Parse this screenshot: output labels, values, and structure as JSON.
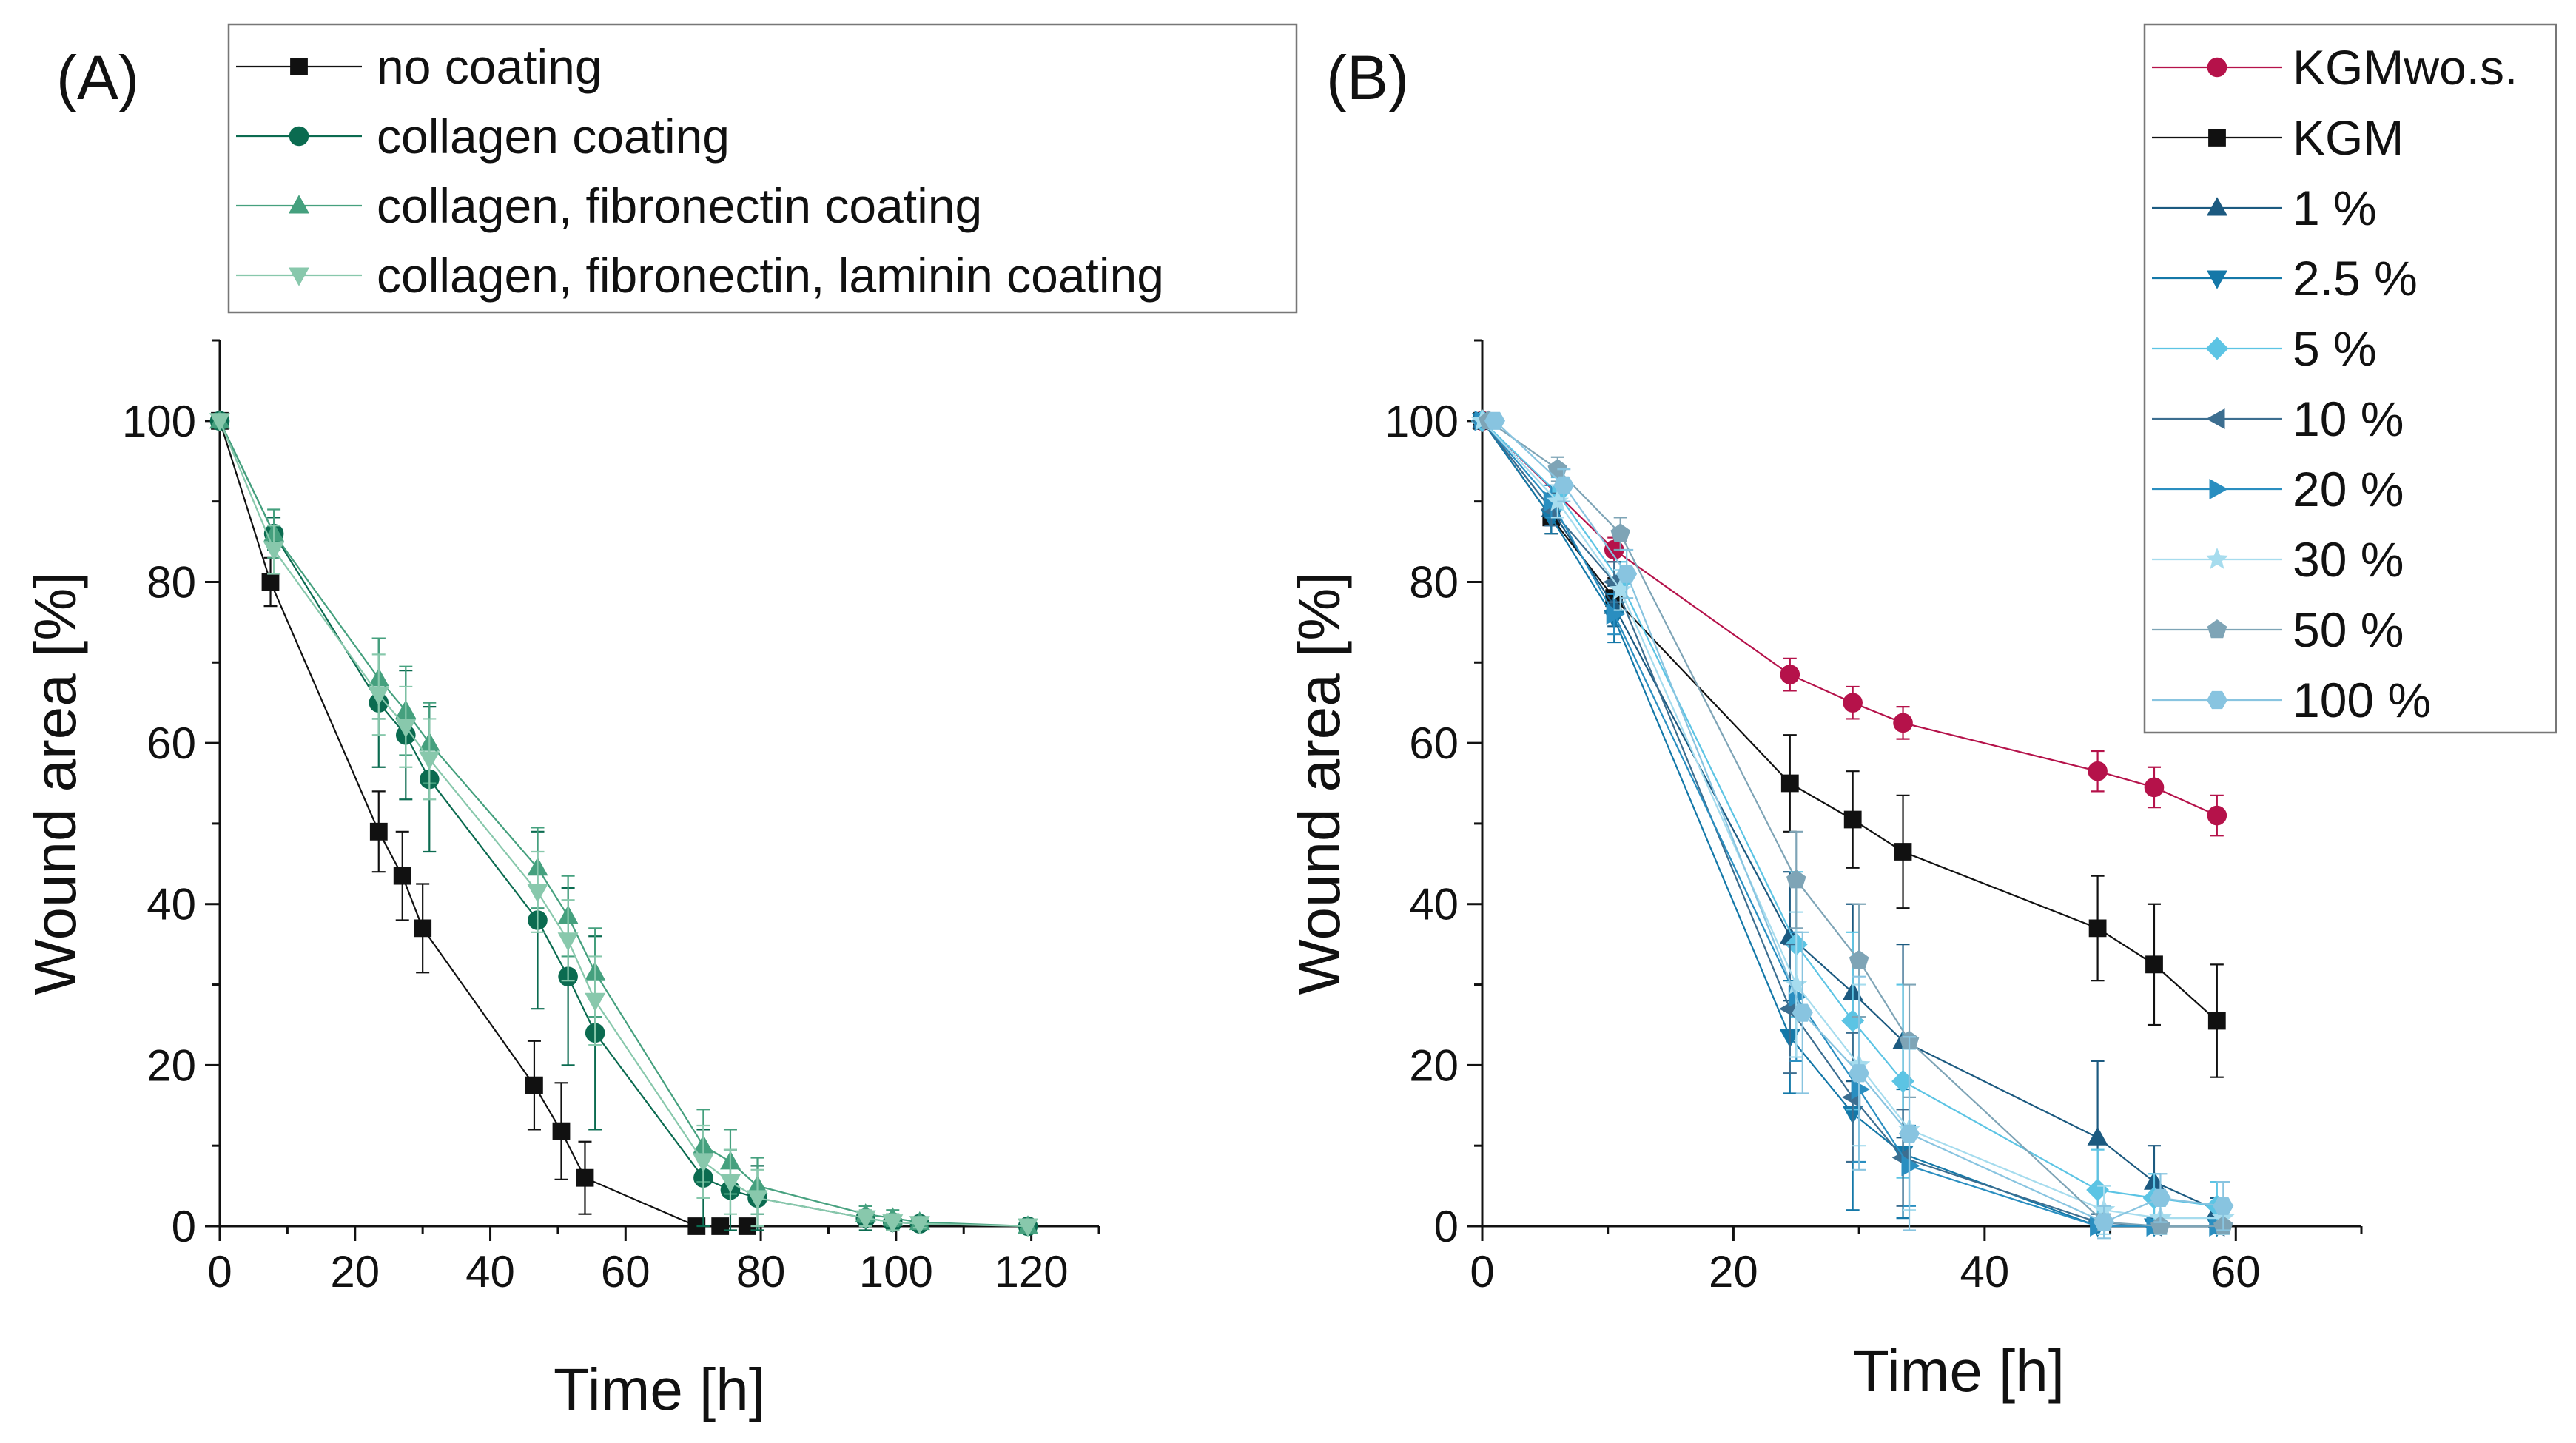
{
  "chart_data": [
    {
      "type": "line",
      "panel_label": "(A)",
      "xlabel": "Time [h]",
      "ylabel": "Wound area [%]",
      "xlim": [
        0,
        130
      ],
      "ylim": [
        0,
        110
      ],
      "xticks": [
        0,
        20,
        40,
        60,
        80,
        100,
        120
      ],
      "yticks": [
        0,
        20,
        40,
        60,
        80,
        100
      ],
      "legend_position": "top",
      "series": [
        {
          "name": "no coating",
          "marker": "square",
          "color": "#111111",
          "x": [
            0,
            7.5,
            23.5,
            27,
            30,
            46.5,
            50.5,
            54,
            70.5,
            74,
            78
          ],
          "y": [
            100,
            80,
            49,
            43.5,
            37,
            17.5,
            11.8,
            6,
            0,
            0,
            0
          ],
          "err": [
            0,
            3,
            5,
            5.5,
            5.5,
            5.5,
            6,
            4.5,
            0,
            0,
            0
          ]
        },
        {
          "name": "collagen coating",
          "marker": "circle",
          "color": "#0b6b50",
          "x": [
            0,
            8,
            23.5,
            27.5,
            31,
            47,
            51.5,
            55.5,
            71.5,
            75.5,
            79.5,
            95.5,
            99.5,
            103.5,
            119.5
          ],
          "y": [
            100,
            86,
            65,
            61,
            55.5,
            38,
            31,
            24,
            6,
            4.5,
            3.5,
            1,
            0.5,
            0.3,
            0
          ],
          "err": [
            0,
            2,
            8,
            8,
            9,
            11,
            11,
            12,
            6,
            5,
            4,
            1.5,
            1,
            0.5,
            0
          ]
        },
        {
          "name": "collagen, fibronectin coating",
          "marker": "triangle-up",
          "color": "#45a07e",
          "x": [
            0,
            8,
            23.5,
            27.5,
            31,
            47,
            51.5,
            55.5,
            71.5,
            75.5,
            79.5,
            95.5,
            99.5,
            103.5,
            119.5
          ],
          "y": [
            100,
            86,
            68,
            64,
            60,
            44.5,
            38.5,
            31.5,
            10,
            8,
            5,
            1.5,
            1,
            0.5,
            0
          ],
          "err": [
            0,
            3,
            5,
            5.5,
            5,
            5,
            5,
            5.5,
            4.5,
            4,
            3.5,
            1,
            1,
            0.5,
            0
          ]
        },
        {
          "name": "collagen, fibronectin, laminin coating",
          "marker": "triangle-down",
          "color": "#88c8ac",
          "x": [
            0,
            8,
            23.5,
            27.5,
            31,
            47,
            51.5,
            55.5,
            71.5,
            75.5,
            79.5,
            95.5,
            99.5,
            103.5,
            119.5
          ],
          "y": [
            100,
            84,
            66,
            62,
            58,
            41.5,
            35.5,
            28,
            8,
            5.5,
            3.5,
            1,
            0.5,
            0.3,
            0
          ],
          "err": [
            0,
            3,
            5,
            5,
            5,
            5,
            5,
            5.5,
            4.5,
            4,
            3.5,
            1,
            1,
            0.5,
            0
          ]
        }
      ]
    },
    {
      "type": "line",
      "panel_label": "(B)",
      "xlabel": "Time [h]",
      "ylabel": "Wound area [%]",
      "xlim": [
        0,
        70
      ],
      "ylim": [
        0,
        110
      ],
      "xticks": [
        0,
        20,
        40,
        60
      ],
      "yticks": [
        0,
        20,
        40,
        60,
        80,
        100
      ],
      "legend_position": "top-right",
      "series": [
        {
          "name": "KGMwo.s.",
          "marker": "circle",
          "color": "#b5124a",
          "x": [
            0,
            10.5,
            24.5,
            29.5,
            33.5,
            49,
            53.5,
            58.5
          ],
          "y": [
            100,
            84,
            68.5,
            65,
            62.5,
            56.5,
            54.5,
            51
          ],
          "err": [
            0,
            1.5,
            2,
            2,
            2,
            2.5,
            2.5,
            2.5
          ]
        },
        {
          "name": "KGM",
          "marker": "square",
          "color": "#111111",
          "x": [
            0,
            5.5,
            10.5,
            24.5,
            29.5,
            33.5,
            49,
            53.5,
            58.5
          ],
          "y": [
            100,
            88,
            78,
            55,
            50.5,
            46.5,
            37,
            32.5,
            25.5
          ],
          "err": [
            0,
            2,
            2.5,
            6,
            6,
            7,
            6.5,
            7.5,
            7
          ]
        },
        {
          "name": "1 %",
          "marker": "triangle-up",
          "color": "#1c5a80",
          "x": [
            0,
            5.5,
            10.5,
            24.5,
            29.5,
            33.5,
            49,
            53.5,
            58.5
          ],
          "y": [
            100,
            89,
            77,
            36,
            29,
            23,
            11,
            5.5,
            2
          ],
          "err": [
            0,
            2,
            2.5,
            8,
            11,
            12,
            9.5,
            4.5,
            1.5
          ]
        },
        {
          "name": "2.5 %",
          "marker": "triangle-down",
          "color": "#1478a8",
          "x": [
            0,
            5.5,
            10.5,
            24.5,
            29.5,
            33.5,
            49,
            53.5,
            58.5
          ],
          "y": [
            100,
            88,
            75.5,
            23.5,
            14,
            9,
            0,
            0,
            0
          ],
          "err": [
            0,
            2,
            3,
            7,
            12,
            8,
            0,
            0,
            0
          ]
        },
        {
          "name": "5 %",
          "marker": "diamond",
          "color": "#5cc4e4",
          "x": [
            0,
            6,
            11,
            25,
            29.5,
            33.5,
            49,
            53.5,
            58.5
          ],
          "y": [
            100,
            91,
            80,
            35,
            25.5,
            18,
            4.5,
            3.5,
            2.5
          ],
          "err": [
            0,
            2,
            2.5,
            9,
            11,
            12,
            5,
            3,
            3
          ]
        },
        {
          "name": "10 %",
          "marker": "triangle-left",
          "color": "#3c6e90",
          "x": [
            0,
            5.5,
            10.5,
            24.5,
            29.5,
            33.5,
            49,
            53.5,
            58.5
          ],
          "y": [
            100,
            89,
            80,
            27,
            16,
            8.5,
            0.5,
            0,
            0
          ],
          "err": [
            0,
            2,
            2.5,
            8,
            8,
            6,
            1,
            0,
            0
          ]
        },
        {
          "name": "20 %",
          "marker": "triangle-right",
          "color": "#2a8ec0",
          "x": [
            0,
            5.5,
            10.5,
            25,
            30,
            34,
            49,
            53.5,
            58.5
          ],
          "y": [
            100,
            90,
            76,
            28.5,
            17,
            7.5,
            0,
            0,
            0
          ],
          "err": [
            0,
            2,
            2.5,
            8,
            9,
            5,
            0,
            0,
            0
          ]
        },
        {
          "name": "30 %",
          "marker": "star",
          "color": "#a6dcee",
          "x": [
            0,
            6,
            11,
            25,
            30,
            34,
            49.5,
            54,
            59
          ],
          "y": [
            100,
            90,
            79,
            30,
            20,
            12,
            2,
            1,
            1
          ],
          "err": [
            0,
            2,
            2.5,
            9,
            10,
            10,
            3,
            2,
            2
          ]
        },
        {
          "name": "50 %",
          "marker": "pentagon",
          "color": "#7ea4b6",
          "x": [
            0.5,
            6,
            11,
            25,
            30,
            34,
            49.5,
            54,
            59
          ],
          "y": [
            100,
            94,
            86,
            43,
            33,
            23,
            0.5,
            0,
            0
          ],
          "err": [
            0,
            1.5,
            2,
            6,
            7,
            7,
            1,
            0,
            0
          ]
        },
        {
          "name": "100 %",
          "marker": "hexagon",
          "color": "#88c4e0",
          "x": [
            1,
            6.5,
            11.5,
            25.5,
            30,
            34,
            49.5,
            54,
            59
          ],
          "y": [
            100,
            92,
            81,
            26.5,
            19,
            11.5,
            0.5,
            3.5,
            2.5
          ],
          "err": [
            0,
            2,
            3,
            10,
            12,
            12,
            2,
            3,
            3
          ]
        }
      ]
    }
  ]
}
